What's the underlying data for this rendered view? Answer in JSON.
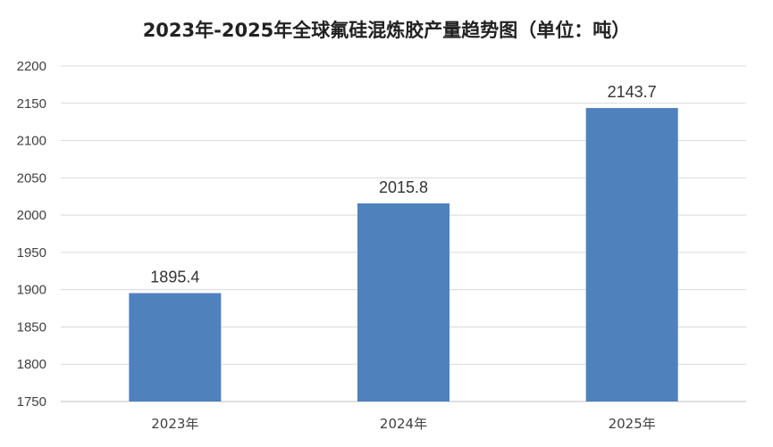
{
  "chart_data": {
    "type": "bar",
    "title": "2023年-2025年全球氟硅混炼胶产量趋势图（单位：吨）",
    "categories": [
      "2023年",
      "2024年",
      "2025年"
    ],
    "series": [
      {
        "values": [
          1895.4,
          2015.8,
          2143.7
        ]
      }
    ],
    "data_labels": [
      "1895.4",
      "2015.8",
      "2143.7"
    ],
    "ylim": [
      1750,
      2200
    ],
    "yticks": [
      1750,
      1800,
      1850,
      1900,
      1950,
      2000,
      2050,
      2100,
      2150,
      2200
    ],
    "xlabel": "",
    "ylabel": "",
    "grid": true,
    "legend": "none",
    "colors": {
      "bar": "#4f81bd",
      "grid": "#d9d9d9",
      "text": "#404040",
      "title": "#222222"
    }
  }
}
